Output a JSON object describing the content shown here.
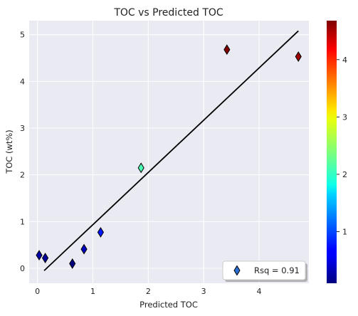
{
  "chart_data": {
    "type": "scatter",
    "title": "TOC vs Predicted TOC",
    "xlabel": "Predicted TOC",
    "ylabel": "TOC (wt%)",
    "xlim": [
      -0.15,
      4.9
    ],
    "ylim": [
      -0.32,
      5.3
    ],
    "xticks": [
      0,
      1,
      2,
      3,
      4
    ],
    "yticks": [
      0,
      1,
      2,
      3,
      4,
      5
    ],
    "grid": true,
    "background": "#eaeaf2",
    "colormap": "jet",
    "colorbar": {
      "range": [
        0.1,
        4.68
      ],
      "ticks": [
        1,
        2,
        3,
        4
      ]
    },
    "legend": {
      "label": "Rsq = 0.91",
      "placement": "bottom-right"
    },
    "marker": "diamond",
    "points": [
      {
        "x": 0.03,
        "y": 0.28,
        "c": 0.28
      },
      {
        "x": 0.14,
        "y": 0.22,
        "c": 0.22
      },
      {
        "x": 0.63,
        "y": 0.1,
        "c": 0.1
      },
      {
        "x": 0.84,
        "y": 0.41,
        "c": 0.41
      },
      {
        "x": 1.14,
        "y": 0.77,
        "c": 0.77
      },
      {
        "x": 1.87,
        "y": 2.15,
        "c": 2.15
      },
      {
        "x": 3.42,
        "y": 4.68,
        "c": 4.68
      },
      {
        "x": 4.71,
        "y": 4.53,
        "c": 4.53
      }
    ],
    "fit_line": {
      "x": [
        0.12,
        4.71
      ],
      "y": [
        -0.05,
        5.08
      ],
      "color": "#000000"
    }
  }
}
